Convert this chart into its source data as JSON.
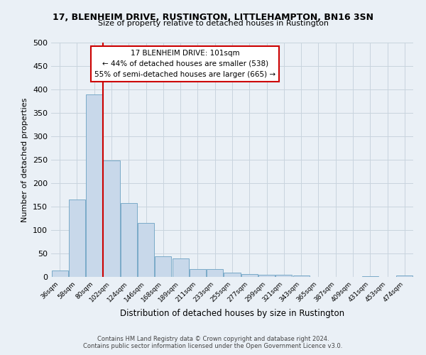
{
  "title": "17, BLENHEIM DRIVE, RUSTINGTON, LITTLEHAMPTON, BN16 3SN",
  "subtitle": "Size of property relative to detached houses in Rustington",
  "xlabel": "Distribution of detached houses by size in Rustington",
  "ylabel": "Number of detached properties",
  "bin_labels": [
    "36sqm",
    "58sqm",
    "80sqm",
    "102sqm",
    "124sqm",
    "146sqm",
    "168sqm",
    "189sqm",
    "211sqm",
    "233sqm",
    "255sqm",
    "277sqm",
    "299sqm",
    "321sqm",
    "343sqm",
    "365sqm",
    "387sqm",
    "409sqm",
    "431sqm",
    "453sqm",
    "474sqm"
  ],
  "bar_values": [
    13,
    165,
    390,
    248,
    157,
    115,
    44,
    40,
    17,
    16,
    9,
    6,
    5,
    4,
    3,
    0,
    0,
    0,
    2,
    0,
    3
  ],
  "bar_color": "#c8d8ea",
  "bar_edge_color": "#7aaac8",
  "vline_color": "#cc0000",
  "annotation_title": "17 BLENHEIM DRIVE: 101sqm",
  "annotation_line1": "← 44% of detached houses are smaller (538)",
  "annotation_line2": "55% of semi-detached houses are larger (665) →",
  "annotation_box_color": "#ffffff",
  "annotation_box_edge": "#cc0000",
  "ylim": [
    0,
    500
  ],
  "yticks": [
    0,
    50,
    100,
    150,
    200,
    250,
    300,
    350,
    400,
    450,
    500
  ],
  "grid_color": "#c8d4de",
  "background_color": "#eaf0f6",
  "footer_line1": "Contains HM Land Registry data © Crown copyright and database right 2024.",
  "footer_line2": "Contains public sector information licensed under the Open Government Licence v3.0."
}
